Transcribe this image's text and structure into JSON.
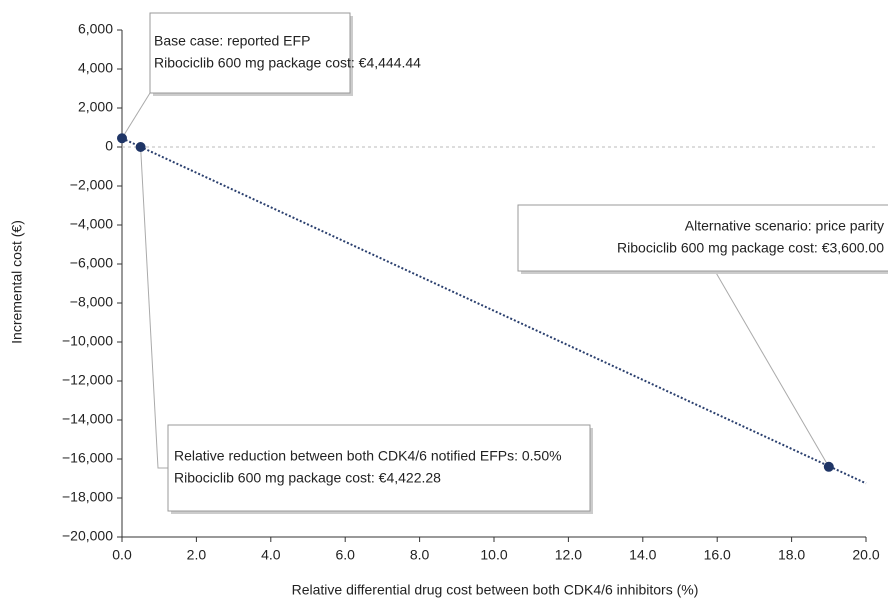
{
  "chart_data": {
    "type": "line",
    "x_label": "Relative differential drug cost between both CDK4/6 inhibitors (%)",
    "y_label": "Incremental cost (€)",
    "x": [
      0,
      20
    ],
    "values": [
      450,
      -17250
    ],
    "color": "#2a3f6e",
    "points": {
      "x": [
        0,
        0.5,
        19
      ],
      "values": [
        450,
        0,
        -16400
      ],
      "color": "#1f3566"
    },
    "reference_line": 0,
    "xlim": [
      0,
      20
    ],
    "ylim": [
      -20000,
      6000
    ],
    "xticks": [
      {
        "value": 0,
        "label": "0.0"
      },
      {
        "value": 2,
        "label": "2.0"
      },
      {
        "value": 4,
        "label": "4.0"
      },
      {
        "value": 6,
        "label": "6.0"
      },
      {
        "value": 8,
        "label": "8.0"
      },
      {
        "value": 10,
        "label": "10.0"
      },
      {
        "value": 12,
        "label": "12.0"
      },
      {
        "value": 14,
        "label": "14.0"
      },
      {
        "value": 16,
        "label": "16.0"
      },
      {
        "value": 18,
        "label": "18.0"
      },
      {
        "value": 20,
        "label": "20.0"
      }
    ],
    "yticks": [
      {
        "value": 6000,
        "label": "6,000"
      },
      {
        "value": 4000,
        "label": "4,000"
      },
      {
        "value": 2000,
        "label": "2,000"
      },
      0,
      {
        "value": -2000,
        "label": "−2,000"
      },
      {
        "value": -4000,
        "label": "−4,000"
      },
      {
        "value": -6000,
        "label": "−6,000"
      },
      {
        "value": -8000,
        "label": "−8,000"
      },
      {
        "value": -10000,
        "label": "−10,000"
      },
      {
        "value": -12000,
        "label": "−12,000"
      },
      {
        "value": -14000,
        "label": "−14,000"
      },
      {
        "value": -16000,
        "label": "−16,000"
      },
      {
        "value": -18000,
        "label": "−18,000"
      },
      {
        "value": -20000,
        "label": "−20,000"
      }
    ],
    "annotations": [
      {
        "lines": [
          "Base case: reported EFP",
          "Ribociclib 600 mg package cost: €4,444.44"
        ]
      },
      {
        "lines": [
          "Alternative scenario: price parity",
          "Ribociclib 600 mg package cost: €3,600.00"
        ]
      },
      {
        "lines": [
          "Relative reduction between both CDK4/6 notified EFPs: 0.50%",
          "Ribociclib 600 mg package cost: €4,422.28"
        ]
      }
    ]
  }
}
